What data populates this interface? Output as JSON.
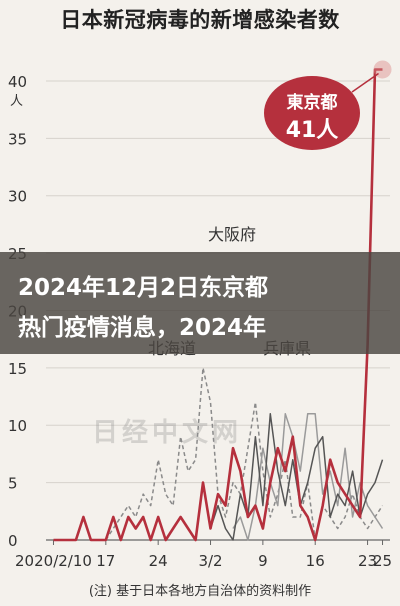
{
  "chart_data": {
    "type": "line",
    "title": "日本新冠病毒的新增感染者数",
    "note": "(注) 基于日本各地方自治体的资料制作",
    "y_unit": "人",
    "ylim": [
      0,
      42
    ],
    "yticks": [
      0,
      5,
      10,
      15,
      20,
      25,
      30,
      35,
      40
    ],
    "x_tick_labels": [
      "2020/2/10",
      "17",
      "24",
      "3/2",
      "9",
      "16",
      "23",
      "25"
    ],
    "x_tick_days": [
      0,
      7,
      14,
      21,
      28,
      35,
      42,
      44
    ],
    "xlim": [
      -1,
      45
    ],
    "callout": {
      "name": "東京都",
      "value": "41人"
    },
    "watermark": "日经中文网",
    "series": [
      {
        "name": "東京都",
        "color": "#b5303d",
        "style": "solid",
        "values": [
          0,
          0,
          0,
          0,
          2,
          0,
          0,
          0,
          2,
          0,
          2,
          1,
          2,
          0,
          2,
          0,
          1,
          2,
          1,
          0,
          5,
          1,
          4,
          3,
          8,
          6,
          2,
          3,
          1,
          5,
          8,
          6,
          9,
          3,
          2,
          0,
          3,
          7,
          5,
          4,
          3,
          2,
          17,
          41,
          41
        ]
      },
      {
        "name": "大阪府",
        "color": "#555555",
        "style": "solid",
        "values": [
          null,
          null,
          null,
          null,
          null,
          null,
          null,
          null,
          null,
          null,
          null,
          null,
          null,
          null,
          null,
          null,
          null,
          null,
          null,
          null,
          null,
          1,
          3,
          1,
          0,
          4,
          2,
          9,
          3,
          11,
          6,
          3,
          7,
          3,
          5,
          8,
          9,
          2,
          4,
          3,
          6,
          2,
          4,
          5,
          7
        ]
      },
      {
        "name": "兵庫県",
        "color": "#9a9a9a",
        "style": "solid",
        "values": [
          null,
          null,
          null,
          null,
          null,
          null,
          null,
          null,
          null,
          null,
          null,
          null,
          null,
          null,
          null,
          null,
          null,
          null,
          null,
          null,
          null,
          null,
          null,
          null,
          1,
          2,
          0,
          3,
          8,
          5,
          3,
          11,
          9,
          6,
          11,
          11,
          4,
          6,
          3,
          8,
          2,
          5,
          3,
          2,
          1
        ]
      },
      {
        "name": "北海道",
        "color": "#8a8a8a",
        "style": "dashed",
        "values": [
          null,
          null,
          null,
          null,
          null,
          null,
          null,
          0,
          1,
          2,
          3,
          2,
          4,
          3,
          7,
          4,
          3,
          9,
          6,
          7,
          15,
          12,
          4,
          2,
          5,
          4,
          8,
          12,
          6,
          2,
          4,
          7,
          2,
          2,
          5,
          0,
          3,
          2,
          1,
          2,
          4,
          2,
          1,
          2,
          3
        ]
      }
    ],
    "series_labels": [
      {
        "text": "大阪府"
      },
      {
        "text": "北海道"
      },
      {
        "text": "兵庫県"
      }
    ]
  },
  "overlay": {
    "line1": "2024年12月2日东京都",
    "line2": "热门疫情消息，2024年"
  }
}
